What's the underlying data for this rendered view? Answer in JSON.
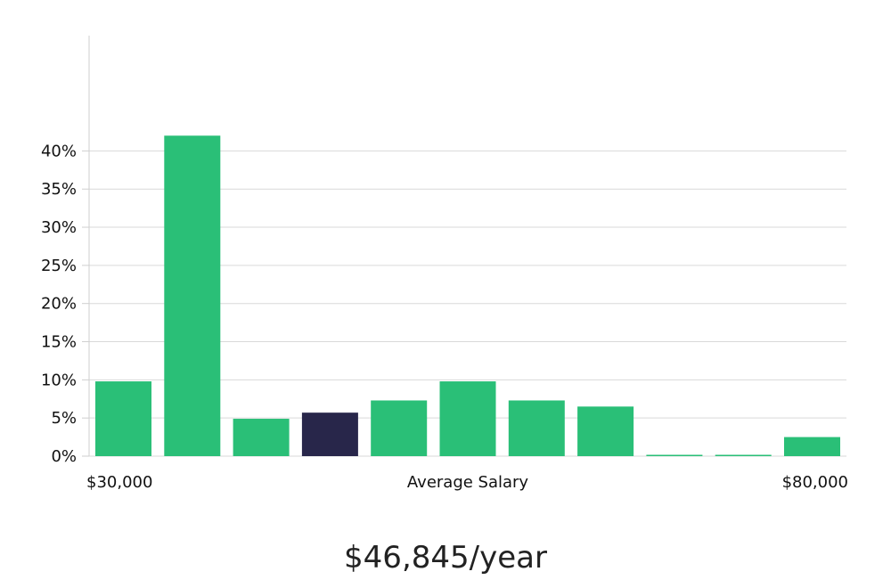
{
  "colors": {
    "bar": "#2abf77",
    "highlight": "#28264a",
    "grid": "#d9d9d9",
    "axis": "#cfcfcf"
  },
  "chart_data": {
    "type": "bar",
    "xlabel": "Average Salary",
    "x_range_labels": [
      "$30,000",
      "$80,000"
    ],
    "ylim": [
      0,
      45
    ],
    "yticks": [
      0,
      5,
      10,
      15,
      20,
      25,
      30,
      35,
      40
    ],
    "ytick_suffix": "%",
    "grid": true,
    "values": [
      9.8,
      42,
      4.9,
      5.7,
      7.3,
      9.8,
      7.3,
      6.5,
      0.1,
      0.1,
      2.5
    ],
    "highlight_index": 3
  },
  "salary_display": "$46,845/year"
}
